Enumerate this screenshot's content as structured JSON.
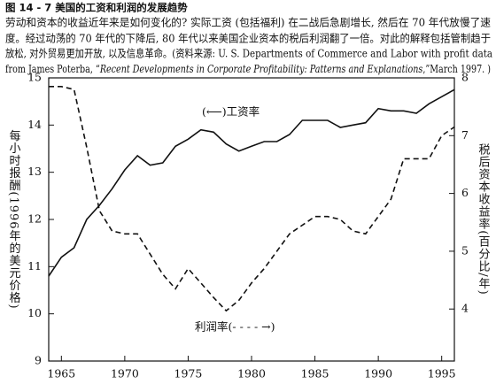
{
  "header": {
    "title": "图 14 - 7    美国的工资和利润的发展趋势",
    "caption": [
      "劳动和资本的收益近年来是如何变化的? 实际工资 (包括福利) 在二战后急剧增长, 然后在 70 年代放慢了速",
      "度。经过动荡的 70 年代的下降后, 80 年代以来美国企业资本的税后利润翻了一倍。对此的解释包括管制趋于",
      "放松, 对外贸易更加开放, 以及信息革命。(资料来源: U. S. Departments of Commerce and Labor with profit data"
    ],
    "caption_last": [
      "from James Poterba, “",
      "Recent Developments in Corporate Profitability: Patterns and Explanations",
      ",”March 1997. )"
    ]
  },
  "chart_data": {
    "type": "line",
    "ylabel": "每小时报酬(1996年的美元价格)",
    "y2label": "税后资本收益率(百分比/年)",
    "x": [
      1964,
      1965,
      1966,
      1967,
      1968,
      1969,
      1970,
      1971,
      1972,
      1973,
      1974,
      1975,
      1976,
      1977,
      1978,
      1979,
      1980,
      1981,
      1982,
      1983,
      1984,
      1985,
      1986,
      1987,
      1988,
      1989,
      1990,
      1991,
      1992,
      1993,
      1994,
      1995,
      1996
    ],
    "series": [
      {
        "name": "(⟵)工资率",
        "color": "#111111",
        "dash": false,
        "values": [
          10.8,
          11.2,
          11.4,
          12.0,
          12.3,
          12.65,
          13.05,
          13.35,
          13.15,
          13.2,
          13.55,
          13.7,
          13.9,
          13.85,
          13.6,
          13.45,
          13.55,
          13.65,
          13.65,
          13.8,
          14.1,
          14.1,
          14.1,
          13.95,
          14.0,
          14.05,
          14.35,
          14.3,
          14.3,
          14.25,
          14.45,
          14.6,
          14.75
        ]
      },
      {
        "name": "利润率(- - - - →)",
        "color": "#111111",
        "dash": true,
        "axis": "y2",
        "values": [
          7.85,
          7.85,
          7.8,
          6.8,
          5.7,
          5.35,
          5.3,
          5.3,
          4.95,
          4.6,
          4.35,
          4.7,
          4.45,
          4.2,
          3.97,
          4.15,
          4.45,
          4.7,
          5.0,
          5.3,
          5.45,
          5.6,
          5.6,
          5.55,
          5.35,
          5.3,
          5.6,
          5.9,
          6.6,
          6.6,
          6.6,
          7.0,
          7.15
        ]
      }
    ],
    "xlim": [
      1964,
      1996
    ],
    "xticks": [
      1965,
      1970,
      1975,
      1980,
      1985,
      1990,
      1995
    ],
    "ylim": [
      9,
      15
    ],
    "yticks": [
      9,
      10,
      11,
      12,
      13,
      14,
      15
    ],
    "y2lim": [
      3.1,
      8
    ],
    "y2ticks": [
      4,
      5,
      6,
      7,
      8
    ]
  }
}
